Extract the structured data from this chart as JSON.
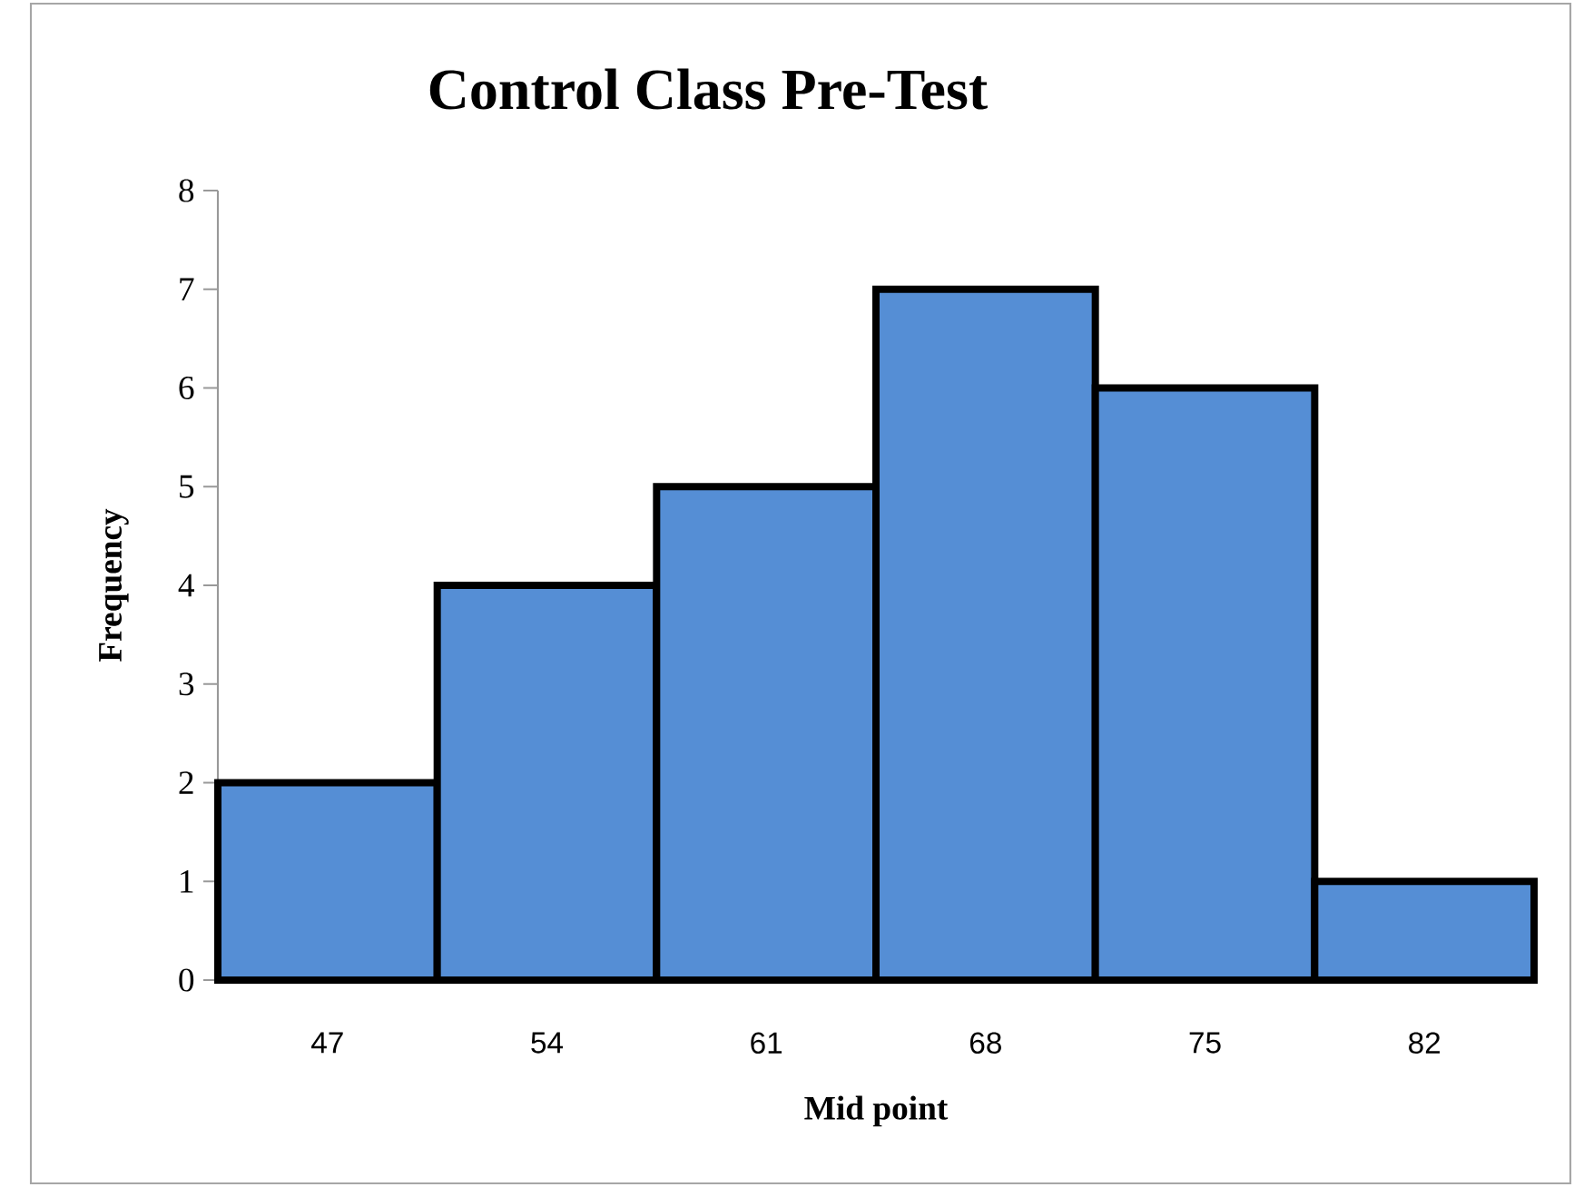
{
  "chart_data": {
    "type": "bar",
    "title": "Control Class Pre-Test",
    "xlabel": "Mid point",
    "ylabel": "Frequency",
    "categories": [
      "47",
      "54",
      "61",
      "68",
      "75",
      "82"
    ],
    "values": [
      2,
      4,
      5,
      7,
      6,
      1
    ],
    "color": "#558ed5",
    "ylim": [
      0,
      8
    ],
    "yticks": [
      0,
      1,
      2,
      3,
      4,
      5,
      6,
      7,
      8
    ]
  }
}
